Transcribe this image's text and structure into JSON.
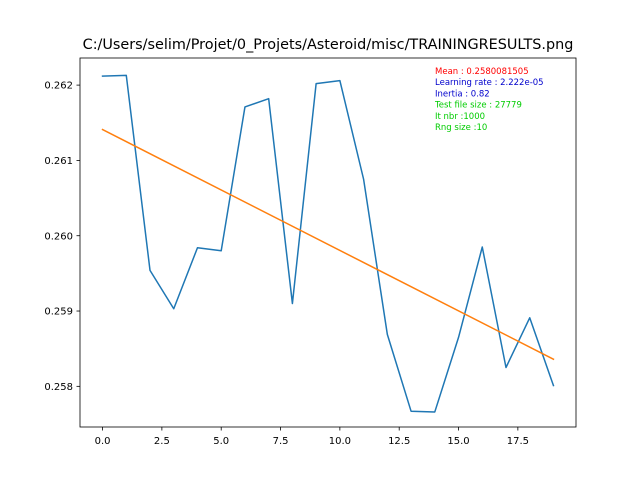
{
  "chart_data": {
    "type": "line",
    "title": "C:/Users/selim/Projet/0_Projets/Asteroid/misc/TRAININGRESULTS.png",
    "xlabel": "",
    "ylabel": "",
    "xlim": [
      -0.95,
      19.95
    ],
    "ylim": [
      0.25746,
      0.26236
    ],
    "x_ticks": [
      0.0,
      2.5,
      5.0,
      7.5,
      10.0,
      12.5,
      15.0,
      17.5
    ],
    "x_tick_labels": [
      "0.0",
      "2.5",
      "5.0",
      "7.5",
      "10.0",
      "12.5",
      "15.0",
      "17.5"
    ],
    "y_ticks": [
      0.258,
      0.259,
      0.26,
      0.261,
      0.262
    ],
    "y_tick_labels": [
      "0.258",
      "0.259",
      "0.260",
      "0.261",
      "0.262"
    ],
    "grid": false,
    "series": [
      {
        "color": "#1f77b4",
        "x": [
          0,
          1,
          2,
          3,
          4,
          5,
          6,
          7,
          8,
          9,
          10,
          11,
          12,
          13,
          14,
          15,
          16,
          17,
          18,
          19
        ],
        "values": [
          0.26212,
          0.26213,
          0.25954,
          0.25903,
          0.25984,
          0.2598,
          0.26171,
          0.26182,
          0.2591,
          0.26202,
          0.26206,
          0.26075,
          0.25869,
          0.25767,
          0.25766,
          0.25865,
          0.25985,
          0.25825,
          0.25891,
          0.25801
        ]
      },
      {
        "color": "#ff7f0e",
        "x": [
          0,
          19
        ],
        "values": [
          0.26141,
          0.25836
        ]
      }
    ],
    "annotations": [
      {
        "text": "Mean : 0.2580081505",
        "color": "#ff0000"
      },
      {
        "text": "Learning rate : 2.222e-05",
        "color": "#0000cc"
      },
      {
        "text": "Inertia : 0.82",
        "color": "#0000cc"
      },
      {
        "text": "Test file size : 27779",
        "color": "#00cc00"
      },
      {
        "text": "It nbr :1000",
        "color": "#00cc00"
      },
      {
        "text": "Rng size :10",
        "color": "#00cc00"
      }
    ]
  }
}
